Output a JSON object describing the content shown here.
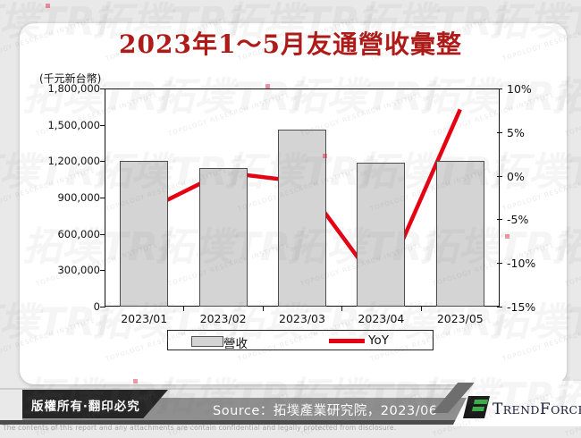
{
  "chart_data": {
    "type": "combo",
    "title": "2023年1～5月友通營收彙整",
    "categories": [
      "2023/01",
      "2023/02",
      "2023/03",
      "2023/04",
      "2023/05"
    ],
    "series": [
      {
        "name": "營收",
        "type": "bar",
        "axis": "left",
        "values": [
          1205000,
          1140000,
          1460000,
          1185000,
          1205000
        ]
      },
      {
        "name": "YoY",
        "type": "line",
        "axis": "right",
        "values": [
          -4.1,
          0.4,
          -0.7,
          -13.0,
          7.6
        ]
      }
    ],
    "left_axis": {
      "label": "(千元新台幣)",
      "min": 0,
      "max": 1800000,
      "ticks": [
        "1,800,000",
        "1,500,000",
        "1,200,000",
        "900,000",
        "600,000",
        "300,000",
        "0"
      ]
    },
    "right_axis": {
      "min": -15,
      "max": 10,
      "ticks": [
        "10%",
        "5%",
        "0%",
        "-5%",
        "-10%",
        "-15%"
      ]
    },
    "legend": [
      {
        "label": "營收",
        "swatch": "bar"
      },
      {
        "label": "YoY",
        "swatch": "line"
      }
    ],
    "legend_position": "bottom",
    "grid": false,
    "colors": {
      "bar": "#d4d4d4",
      "bar_border": "#4d4d4d",
      "line": "#e60012",
      "title": "#ae1a17"
    }
  },
  "footer": {
    "copyright": "版權所有‧翻印必究",
    "source": "Source：拓墣產業研究院，2023/06",
    "disclaimer": "The contents of this report and any attachments are contain confidential and legally protected from disclosure.",
    "logo": {
      "part1": "T",
      "part2": "REND",
      "part3": "F",
      "part4": "ORCE"
    }
  },
  "watermark": {
    "big": "拓墣TRi",
    "small": "TOPOLOGY RESEARCH INSTITUTE"
  }
}
